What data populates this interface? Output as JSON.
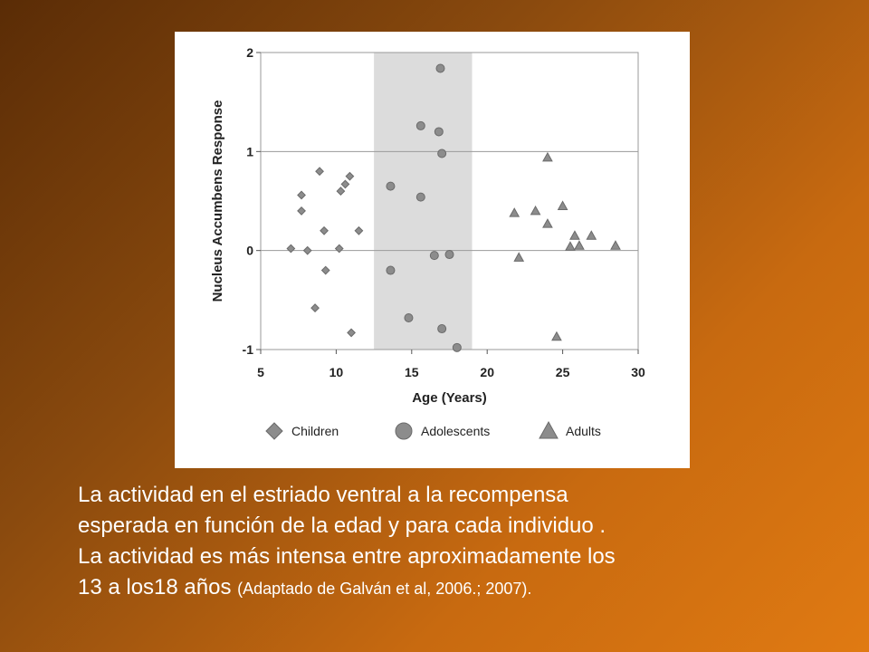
{
  "chart_data": {
    "type": "scatter",
    "xlabel": "Age (Years)",
    "ylabel": "Nucleus Accumbens Response",
    "xlim": [
      5,
      30
    ],
    "ylim": [
      -1,
      2
    ],
    "xticks": [
      "5",
      "10",
      "15",
      "20",
      "25",
      "30"
    ],
    "yticks": [
      "-1",
      "0",
      "1",
      "2"
    ],
    "grid": "horizontal",
    "shaded_region": {
      "x_start": 12.5,
      "x_end": 19,
      "color": "#dcdcdc"
    },
    "legend_position": "bottom",
    "series": [
      {
        "name": "Children",
        "marker": "diamond",
        "points": [
          [
            7,
            0.02
          ],
          [
            7.7,
            0.56
          ],
          [
            7.7,
            0.4
          ],
          [
            8.1,
            0.0
          ],
          [
            8.6,
            -0.58
          ],
          [
            8.9,
            0.8
          ],
          [
            9.2,
            0.2
          ],
          [
            9.3,
            -0.2
          ],
          [
            10.2,
            0.02
          ],
          [
            10.3,
            0.6
          ],
          [
            10.6,
            0.67
          ],
          [
            10.9,
            0.75
          ],
          [
            11,
            -0.83
          ],
          [
            11.5,
            0.2
          ]
        ]
      },
      {
        "name": "Adolescents",
        "marker": "circle",
        "points": [
          [
            13.6,
            0.65
          ],
          [
            13.6,
            -0.2
          ],
          [
            14.8,
            -0.68
          ],
          [
            15.6,
            1.26
          ],
          [
            15.6,
            0.54
          ],
          [
            16.5,
            -0.05
          ],
          [
            16.8,
            1.2
          ],
          [
            16.9,
            1.84
          ],
          [
            17,
            0.98
          ],
          [
            17,
            -0.79
          ],
          [
            17.5,
            -0.04
          ],
          [
            18,
            -0.98
          ]
        ]
      },
      {
        "name": "Adults",
        "marker": "triangle",
        "points": [
          [
            21.8,
            0.38
          ],
          [
            22.1,
            -0.07
          ],
          [
            23.2,
            0.4
          ],
          [
            24,
            0.94
          ],
          [
            24,
            0.27
          ],
          [
            24.6,
            -0.87
          ],
          [
            25,
            0.45
          ],
          [
            25.5,
            0.04
          ],
          [
            25.8,
            0.15
          ],
          [
            26.1,
            0.05
          ],
          [
            26.9,
            0.15
          ],
          [
            28.5,
            0.05
          ]
        ]
      }
    ],
    "colors": {
      "marker_fill": "#8c8c8c",
      "marker_stroke": "#6a6a6a",
      "grid": "#9a9a9a",
      "shade": "#dcdcdc"
    }
  },
  "caption": {
    "line1": "La actividad en el estriado ventral a la recompensa",
    "line2": "esperada en función de la edad y para cada individuo .",
    "line3": "La actividad  es más intensa entre aproximadamente los",
    "line4": "13 a los18 años",
    "citation": "(Adaptado de Galván et al, 2006.; 2007)."
  }
}
